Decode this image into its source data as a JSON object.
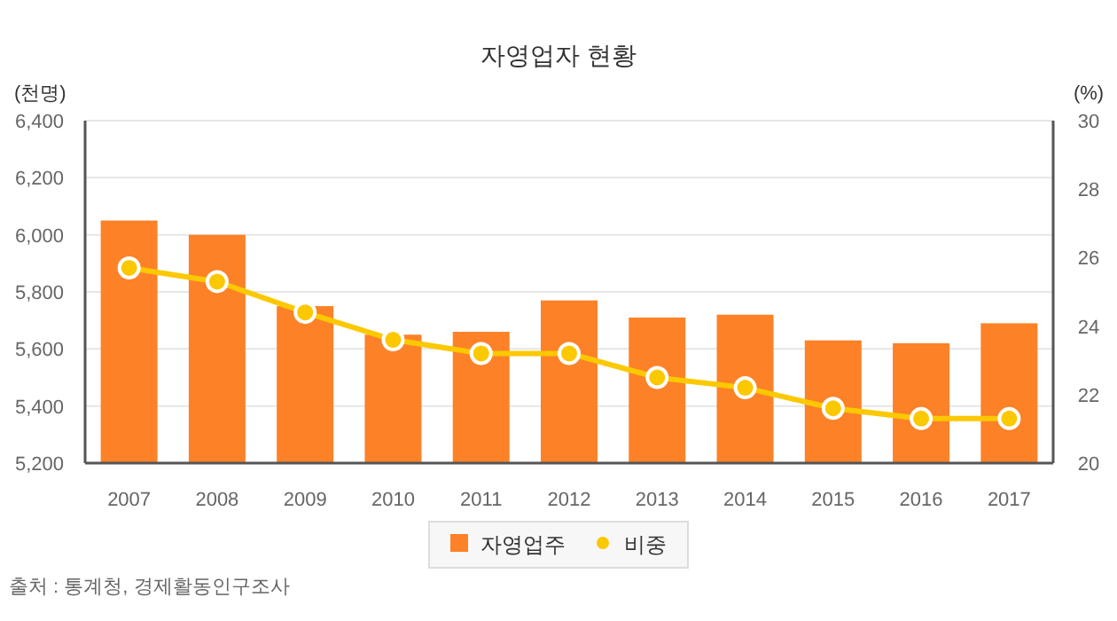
{
  "chart_data": {
    "type": "bar",
    "title": "자영업자 현황",
    "categories": [
      "2007",
      "2008",
      "2009",
      "2010",
      "2011",
      "2012",
      "2013",
      "2014",
      "2015",
      "2016",
      "2017"
    ],
    "series": [
      {
        "name": "자영업주",
        "color": "#fd8127",
        "values": [
          6050,
          6000,
          5750,
          5650,
          5660,
          5770,
          5710,
          5720,
          5630,
          5620,
          5690
        ]
      },
      {
        "name": "비중",
        "type": "line",
        "axis": "y2",
        "color": "#fcc800",
        "marker": "circle",
        "values": [
          25.7,
          25.3,
          24.4,
          23.6,
          23.2,
          23.2,
          22.5,
          22.2,
          21.6,
          21.3,
          21.3
        ]
      }
    ],
    "ylabel": "(천명)",
    "y2label": "(%)",
    "ylim": [
      5200,
      6400
    ],
    "yticks": [
      {
        "value": 5200,
        "label": "5,200"
      },
      {
        "value": 5400,
        "label": "5,400"
      },
      {
        "value": 5600,
        "label": "5,600"
      },
      {
        "value": 5800,
        "label": "5,800"
      },
      {
        "value": 6000,
        "label": "6,000"
      },
      {
        "value": 6200,
        "label": "6,200"
      },
      {
        "value": 6400,
        "label": "6,400"
      }
    ],
    "y2lim": [
      20,
      30
    ],
    "y2ticks": [
      20,
      22,
      24,
      26,
      28,
      30
    ],
    "grid": "y",
    "legend": "bottom",
    "annotations": [
      "출처 : 통계청, 경제활동인구조사"
    ]
  }
}
